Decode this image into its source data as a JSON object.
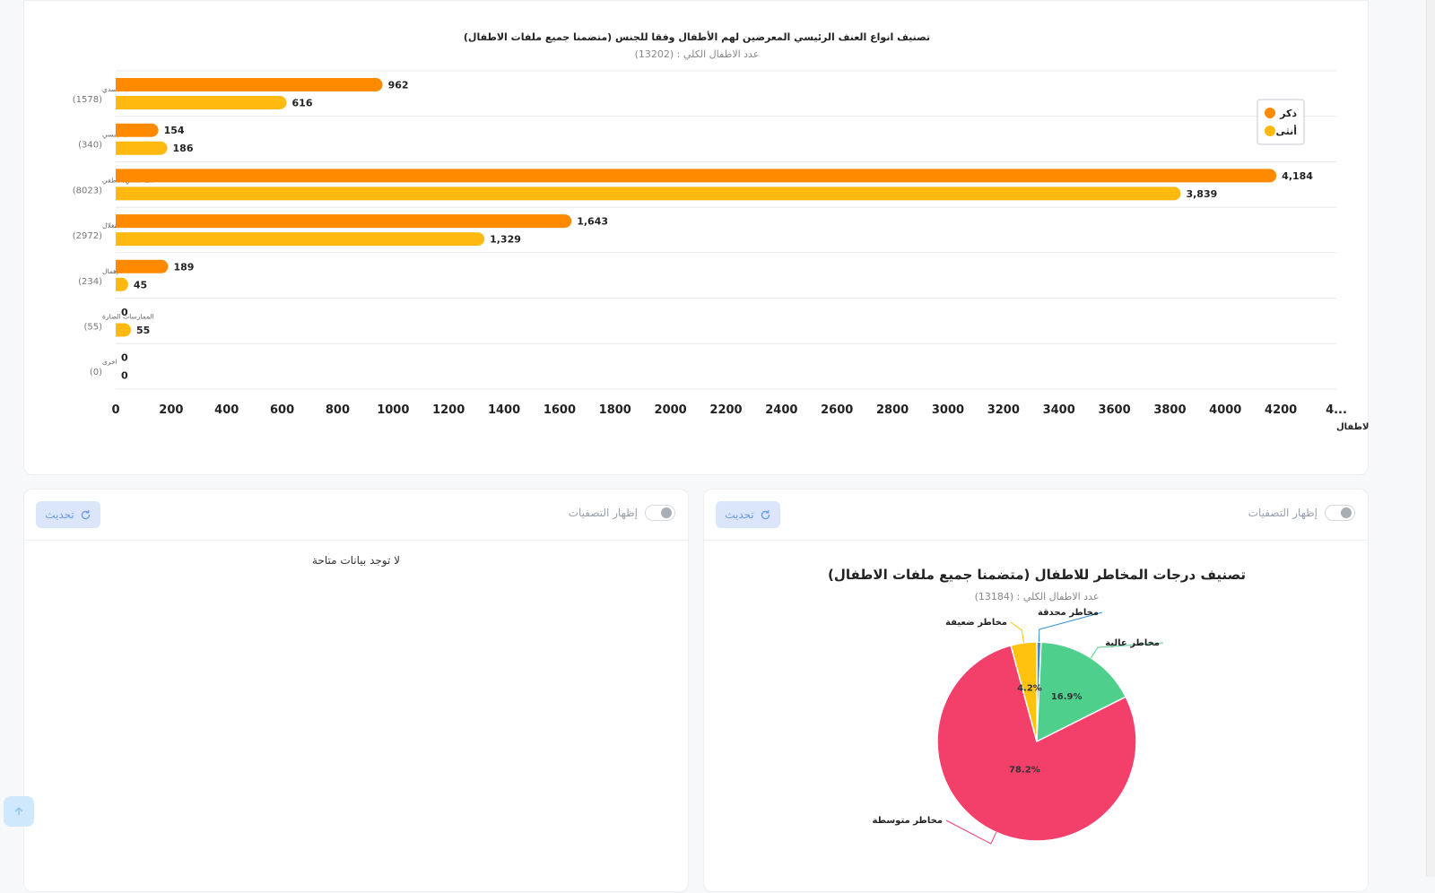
{
  "bar_chart": {
    "legend": [
      {
        "label": "ذكر",
        "color": "#ff8a00"
      },
      {
        "label": "أنثى",
        "color": "#ffb90f"
      }
    ]
  },
  "empty_card": {
    "filter_label": "إظهار التصفيات",
    "refresh_label": "تحديث",
    "message": "لا توجد بيانات متاحة"
  },
  "pie_card": {
    "filter_label": "إظهار التصفيات",
    "refresh_label": "تحديث"
  },
  "chart_data": [
    {
      "type": "bar",
      "orientation": "horizontal",
      "title": "تصنيف انواع العنف الرئيسي المعرضين لهم الأطفال وفقا للجنس (متضمنا جميع ملفات الاطفال)",
      "subtitle": "عدد الاطفال الكلي : (13202)",
      "xlabel": "عدد الاطفال",
      "xlim": [
        0,
        4400
      ],
      "xticks": [
        "0",
        "200",
        "400",
        "600",
        "800",
        "1000",
        "1200",
        "1400",
        "1600",
        "1800",
        "2000",
        "2200",
        "2400",
        "2600",
        "2800",
        "3000",
        "3200",
        "3400",
        "3600",
        "3800",
        "4000",
        "4200",
        "4..."
      ],
      "categories": [
        {
          "name": "عنف جسدي",
          "total": "(1578)"
        },
        {
          "name": "عنف جنسي",
          "total": "(340)"
        },
        {
          "name": "عنف نفسي/عاطفي",
          "total": "(8023)"
        },
        {
          "name": "الاستغلال",
          "total": "(2972)"
        },
        {
          "name": "الإهمال",
          "total": "(234)"
        },
        {
          "name": "الممارسات الضارة",
          "total": "(55)"
        },
        {
          "name": "اخرى",
          "total": "(0)"
        }
      ],
      "series": [
        {
          "name": "ذكر",
          "color": "#ff8a00",
          "values": [
            962,
            154,
            4184,
            1643,
            189,
            0,
            0
          ],
          "labels": [
            "962",
            "154",
            "4,184",
            "1,643",
            "189",
            "0",
            "0"
          ]
        },
        {
          "name": "أنثى",
          "color": "#ffb90f",
          "values": [
            616,
            186,
            3839,
            1329,
            45,
            55,
            0
          ],
          "labels": [
            "616",
            "186",
            "3,839",
            "1,329",
            "45",
            "55",
            "0"
          ]
        }
      ],
      "grid": true,
      "legend_position": "top-right"
    },
    {
      "type": "pie",
      "title": "تصنيف درجات المخاطر للاطفال (متضمنا جميع ملفات الاطفال)",
      "subtitle": "عدد الاطفال الكلي : (13184)",
      "slices": [
        {
          "label": "مخاطر محدقة",
          "percent": 0.7,
          "display": "",
          "color": "#2f8fd8"
        },
        {
          "label": "مخاطر عالية",
          "percent": 16.9,
          "display": "16.9%",
          "color": "#4fcf8c"
        },
        {
          "label": "مخاطر متوسطة",
          "percent": 78.2,
          "display": "78.2%",
          "color": "#f2406b"
        },
        {
          "label": "مخاطر ضعيفة",
          "percent": 4.2,
          "display": "4.2%",
          "color": "#ffc20e"
        }
      ]
    }
  ]
}
